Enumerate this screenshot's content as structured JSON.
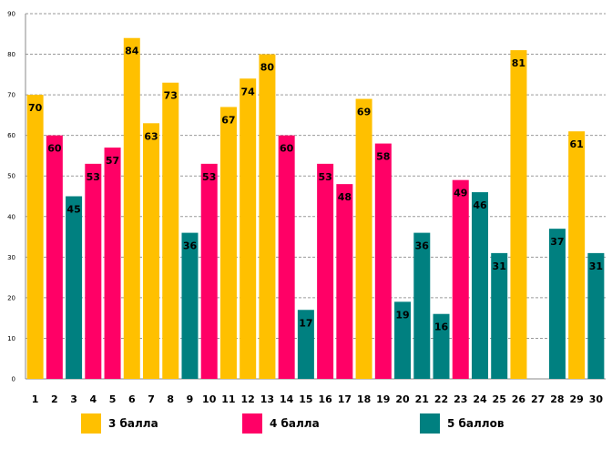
{
  "chart_data": {
    "type": "bar",
    "title": "",
    "xlabel": "",
    "ylabel": "",
    "ylim": [
      0,
      90
    ],
    "yticks": [
      0,
      10,
      20,
      30,
      40,
      50,
      60,
      70,
      80,
      90
    ],
    "grid": true,
    "legend_position": "bottom",
    "categories": [
      "1",
      "2",
      "3",
      "4",
      "5",
      "6",
      "7",
      "8",
      "9",
      "10",
      "11",
      "12",
      "13",
      "14",
      "15",
      "16",
      "17",
      "18",
      "19",
      "20",
      "21",
      "22",
      "23",
      "24",
      "25",
      "26",
      "27",
      "28",
      "29",
      "30"
    ],
    "values": [
      70,
      60,
      45,
      53,
      57,
      84,
      63,
      73,
      36,
      53,
      67,
      74,
      80,
      60,
      17,
      53,
      48,
      69,
      58,
      19,
      36,
      16,
      49,
      46,
      31,
      81,
      null,
      37,
      61,
      31
    ],
    "groups": [
      "3 балла",
      "4 балла",
      "5 баллов",
      "4 балла",
      "4 балла",
      "3 балла",
      "3 балла",
      "3 балла",
      "5 баллов",
      "4 балла",
      "3 балла",
      "3 балла",
      "3 балла",
      "4 балла",
      "5 баллов",
      "4 балла",
      "4 балла",
      "3 балла",
      "4 балла",
      "5 баллов",
      "5 баллов",
      "5 баллов",
      "4 балла",
      "5 баллов",
      "5 баллов",
      "3 балла",
      null,
      "5 баллов",
      "3 балла",
      "5 баллов"
    ],
    "series": [
      {
        "name": "3 балла",
        "color": "#FFC000"
      },
      {
        "name": "4 балла",
        "color": "#FF0066"
      },
      {
        "name": "5 баллов",
        "color": "#008080"
      }
    ]
  }
}
